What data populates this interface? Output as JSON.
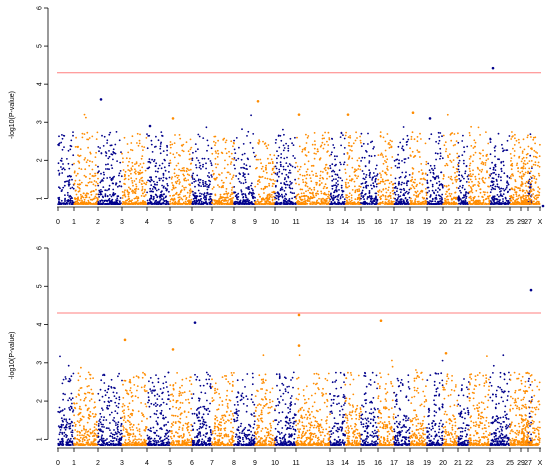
{
  "chart_data": [
    {
      "type": "scatter",
      "ylabel": "-log10(P-value)",
      "ylim": [
        0.8,
        6
      ],
      "y_ticks": [
        1,
        2,
        3,
        4,
        5,
        6
      ],
      "threshold": 4.3,
      "chromosome_labels": [
        "0",
        "1",
        "2",
        "3",
        "4",
        "5",
        "6",
        "7",
        "8",
        "9",
        "10",
        "11",
        "13",
        "14",
        "15",
        "16",
        "17",
        "18",
        "19",
        "20",
        "21",
        "22",
        "23",
        "25",
        "27",
        "29",
        "X"
      ],
      "highlights": [
        {
          "chromosome": "23",
          "y": 4.42
        },
        {
          "chromosome": "2",
          "y": 3.6
        },
        {
          "chromosome": "9",
          "y": 3.55
        },
        {
          "chromosome": "11",
          "y": 3.2
        },
        {
          "chromosome": "18",
          "y": 3.25
        },
        {
          "chromosome": "14",
          "y": 3.2
        },
        {
          "chromosome": "5",
          "y": 3.1
        },
        {
          "chromosome": "4",
          "y": 2.9
        },
        {
          "chromosome": "19",
          "y": 3.1
        },
        {
          "chromosome": "X",
          "y": 0.8
        }
      ]
    },
    {
      "type": "scatter",
      "ylabel": "-log10(P-value)",
      "ylim": [
        0.8,
        6
      ],
      "y_ticks": [
        1,
        2,
        3,
        4,
        5,
        6
      ],
      "threshold": 4.3,
      "chromosome_labels": [
        "0",
        "1",
        "2",
        "3",
        "4",
        "5",
        "6",
        "7",
        "8",
        "9",
        "10",
        "11",
        "13",
        "14",
        "15",
        "16",
        "17",
        "18",
        "19",
        "20",
        "21",
        "22",
        "23",
        "25",
        "27",
        "29",
        "X"
      ],
      "highlights": [
        {
          "chromosome": "27",
          "y": 4.9
        },
        {
          "chromosome": "11",
          "y": 4.25
        },
        {
          "chromosome": "16",
          "y": 4.1
        },
        {
          "chromosome": "6",
          "y": 4.05
        },
        {
          "chromosome": "3",
          "y": 3.6
        },
        {
          "chromosome": "11",
          "y": 3.45
        },
        {
          "chromosome": "5",
          "y": 3.35
        },
        {
          "chromosome": "20",
          "y": 3.25
        }
      ]
    }
  ],
  "colors": {
    "odd": "#00008b",
    "even": "#ff8c00",
    "threshold": "#ff7f7f"
  }
}
